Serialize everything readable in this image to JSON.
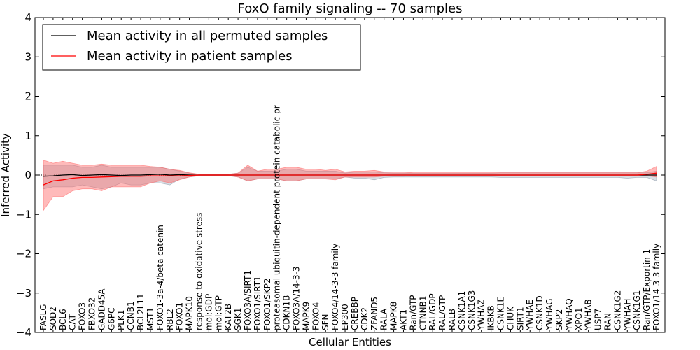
{
  "chart_data": {
    "type": "line",
    "title": "FoxO family signaling -- 70 samples",
    "xlabel": "Cellular Entities",
    "ylabel": "Inferred Activity",
    "ylim": [
      -4,
      4
    ],
    "yticks": [
      -4,
      -3,
      -2,
      -1,
      0,
      1,
      2,
      3,
      4
    ],
    "legend_position": "top-left",
    "categories": [
      "FASLG",
      "SOD2",
      "BCL6",
      "CAT",
      "FOXO3",
      "FBXO32",
      "GADD45A",
      "G6PC",
      "PLK1",
      "CCNB1",
      "BCL2L11",
      "MST1",
      "FOXO1-3a-4/beta catenin",
      "RBL2",
      "FOXO1",
      "MAPK10",
      "response to oxidative stress",
      "mol:GDP",
      "mol:GTP",
      "KAT2B",
      "SGK1",
      "FOXO3A/SIRT1",
      "FOXO1/SIRT1",
      "FOXO1/SKP2",
      "proteasomal ubiquitin-dependent protein catabolic pr",
      "CDKN1B",
      "FOXO3A/14-3-3",
      "MAPK9",
      "FOXO4",
      "SFN",
      "FOXO4/14-3-3 family",
      "EP300",
      "CREBBP",
      "CDK2",
      "ZFAND5",
      "RALA",
      "MAPK8",
      "AKT1",
      "Ran/GTP",
      "CTNNB1",
      "RAL/GDP",
      "RAL/GTP",
      "RALB",
      "CSNK1A1",
      "CSNK1G3",
      "YWHAZ",
      "IKBKB",
      "CSNK1E",
      "CHUK",
      "SIRT1",
      "YWHAE",
      "CSNK1D",
      "YWHAG",
      "SKP2",
      "YWHAQ",
      "XPO1",
      "YWHAB",
      "USP7",
      "RAN",
      "CSNK1G2",
      "YWHAH",
      "CSNK1G1",
      "Ran/GTP/Exportin 1",
      "FOXO1/14-3-3 family"
    ],
    "series": [
      {
        "name": "Mean activity in all permuted samples",
        "color": "#000000",
        "values": [
          -0.03,
          -0.02,
          0.0,
          0.01,
          -0.01,
          0.0,
          0.01,
          0.0,
          -0.01,
          0.0,
          0.0,
          0.01,
          0.02,
          0.0,
          0.01,
          0.0,
          0.0,
          0.0,
          0.0,
          0.0,
          0.0,
          0.0,
          0.0,
          0.0,
          0.0,
          0.0,
          0.0,
          0.0,
          0.0,
          0.0,
          0.0,
          0.0,
          0.0,
          0.0,
          0.0,
          0.0,
          0.0,
          0.0,
          0.0,
          0.0,
          0.0,
          0.0,
          0.0,
          0.0,
          0.0,
          0.0,
          0.0,
          0.0,
          0.0,
          0.0,
          0.0,
          0.0,
          0.0,
          0.0,
          0.0,
          0.0,
          0.0,
          0.0,
          0.0,
          0.0,
          0.0,
          0.0,
          0.0,
          0.0
        ],
        "band_low": [
          -0.35,
          -0.3,
          -0.3,
          -0.3,
          -0.25,
          -0.3,
          -0.35,
          -0.3,
          -0.2,
          -0.25,
          -0.25,
          -0.2,
          -0.2,
          -0.25,
          -0.1,
          -0.05,
          -0.02,
          -0.02,
          -0.02,
          -0.02,
          -0.05,
          -0.15,
          -0.1,
          -0.1,
          -0.1,
          -0.15,
          -0.15,
          -0.1,
          -0.1,
          -0.1,
          -0.1,
          -0.05,
          -0.08,
          -0.08,
          -0.12,
          -0.06,
          -0.05,
          -0.05,
          -0.05,
          -0.05,
          -0.05,
          -0.05,
          -0.05,
          -0.05,
          -0.05,
          -0.05,
          -0.05,
          -0.06,
          -0.06,
          -0.06,
          -0.06,
          -0.06,
          -0.06,
          -0.06,
          -0.06,
          -0.06,
          -0.06,
          -0.06,
          -0.06,
          -0.06,
          -0.08,
          -0.06,
          -0.06,
          -0.15
        ],
        "band_high": [
          0.25,
          0.25,
          0.25,
          0.25,
          0.2,
          0.2,
          0.25,
          0.2,
          0.2,
          0.2,
          0.2,
          0.2,
          0.2,
          0.15,
          0.1,
          0.05,
          0.02,
          0.02,
          0.02,
          0.02,
          0.05,
          0.2,
          0.1,
          0.1,
          0.1,
          0.15,
          0.15,
          0.1,
          0.1,
          0.1,
          0.1,
          0.05,
          0.08,
          0.08,
          0.08,
          0.06,
          0.05,
          0.05,
          0.05,
          0.05,
          0.05,
          0.05,
          0.05,
          0.05,
          0.05,
          0.05,
          0.05,
          0.06,
          0.06,
          0.06,
          0.06,
          0.06,
          0.06,
          0.06,
          0.06,
          0.06,
          0.06,
          0.06,
          0.06,
          0.06,
          0.06,
          0.06,
          0.06,
          0.1
        ]
      },
      {
        "name": "Mean activity in patient samples",
        "color": "#ff0000",
        "values": [
          -0.25,
          -0.15,
          -0.12,
          -0.08,
          -0.06,
          -0.06,
          -0.05,
          -0.04,
          -0.03,
          -0.03,
          -0.03,
          -0.02,
          -0.02,
          -0.02,
          -0.02,
          -0.01,
          0.0,
          0.0,
          0.0,
          0.0,
          0.0,
          0.0,
          0.0,
          0.0,
          0.0,
          0.0,
          0.0,
          0.0,
          0.0,
          0.0,
          0.0,
          0.0,
          0.0,
          0.0,
          0.0,
          0.0,
          0.0,
          0.0,
          0.0,
          0.0,
          0.0,
          0.0,
          0.0,
          0.0,
          0.0,
          0.0,
          0.0,
          0.0,
          0.0,
          0.0,
          0.0,
          0.0,
          0.0,
          0.0,
          0.0,
          0.0,
          0.0,
          0.0,
          0.0,
          0.0,
          0.0,
          0.0,
          0.02,
          0.05
        ],
        "band_low": [
          -0.9,
          -0.55,
          -0.55,
          -0.4,
          -0.35,
          -0.35,
          -0.4,
          -0.3,
          -0.3,
          -0.3,
          -0.3,
          -0.2,
          -0.15,
          -0.2,
          -0.12,
          -0.05,
          -0.01,
          -0.01,
          -0.01,
          -0.01,
          -0.05,
          -0.15,
          -0.1,
          -0.1,
          -0.1,
          -0.15,
          -0.15,
          -0.1,
          -0.1,
          -0.1,
          -0.12,
          -0.05,
          -0.05,
          -0.05,
          -0.05,
          -0.03,
          -0.03,
          -0.03,
          -0.02,
          -0.02,
          -0.02,
          -0.02,
          -0.02,
          -0.02,
          -0.02,
          -0.02,
          -0.02,
          -0.02,
          -0.02,
          -0.02,
          -0.02,
          -0.02,
          -0.02,
          -0.02,
          -0.02,
          -0.02,
          -0.02,
          -0.02,
          -0.02,
          -0.02,
          -0.02,
          -0.02,
          -0.02,
          -0.05
        ],
        "band_high": [
          0.38,
          0.3,
          0.35,
          0.3,
          0.25,
          0.25,
          0.28,
          0.25,
          0.25,
          0.25,
          0.25,
          0.22,
          0.2,
          0.15,
          0.12,
          0.06,
          0.02,
          0.02,
          0.02,
          0.02,
          0.05,
          0.25,
          0.1,
          0.15,
          0.15,
          0.2,
          0.2,
          0.15,
          0.15,
          0.12,
          0.15,
          0.08,
          0.1,
          0.1,
          0.12,
          0.08,
          0.08,
          0.08,
          0.06,
          0.06,
          0.06,
          0.06,
          0.06,
          0.06,
          0.06,
          0.06,
          0.06,
          0.06,
          0.06,
          0.06,
          0.06,
          0.06,
          0.06,
          0.06,
          0.06,
          0.06,
          0.06,
          0.06,
          0.06,
          0.06,
          0.06,
          0.06,
          0.1,
          0.22
        ]
      }
    ]
  }
}
